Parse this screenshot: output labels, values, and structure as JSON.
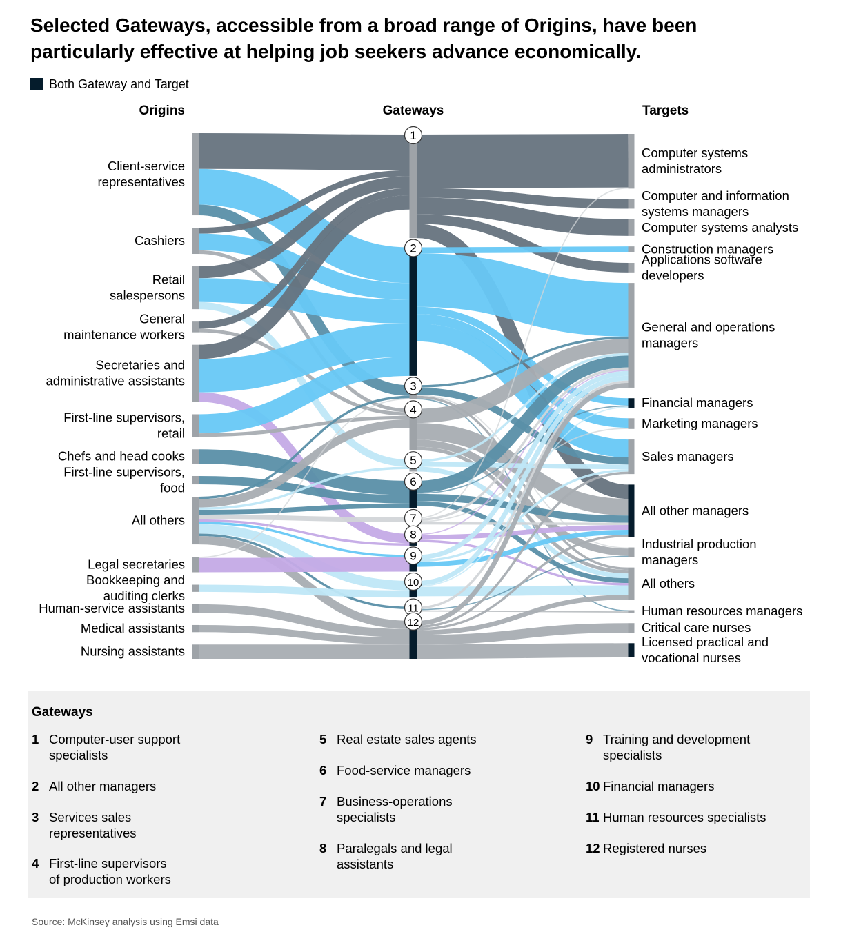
{
  "title": "Selected Gateways, accessible from a broad range of Origins, have been particularly effective at helping job seekers advance economically.",
  "legend": {
    "label": "Both Gateway and Target",
    "color": "#051c2c"
  },
  "columns": {
    "origins": "Origins",
    "gateways": "Gateways",
    "targets": "Targets"
  },
  "colors": {
    "dark_grey": "#66737e",
    "grey": "#a8adb2",
    "light_grey": "#d2d5d8",
    "blue": "#67c8f5",
    "pale_blue": "#bfe7f7",
    "steel_blue": "#5a8fa8",
    "purple": "#c4aae6",
    "node_grey": "#9ea3a8",
    "navy": "#051c2c"
  },
  "origins": [
    {
      "id": "o_csr",
      "label": [
        "Client-service",
        "representatives"
      ]
    },
    {
      "id": "o_cash",
      "label": [
        "Cashiers"
      ]
    },
    {
      "id": "o_retail",
      "label": [
        "Retail",
        "salespersons"
      ]
    },
    {
      "id": "o_maint",
      "label": [
        "General",
        "maintenance workers"
      ]
    },
    {
      "id": "o_sec",
      "label": [
        "Secretaries and",
        "administrative assistants"
      ]
    },
    {
      "id": "o_flsr",
      "label": [
        "First-line supervisors,",
        "retail"
      ]
    },
    {
      "id": "o_chef",
      "label": [
        "Chefs and head cooks"
      ]
    },
    {
      "id": "o_flsf",
      "label": [
        "First-line supervisors,",
        "food"
      ]
    },
    {
      "id": "o_all",
      "label": [
        "All others"
      ]
    },
    {
      "id": "o_legal",
      "label": [
        "Legal secretaries"
      ]
    },
    {
      "id": "o_book",
      "label": [
        "Bookkeeping and",
        "auditing clerks"
      ]
    },
    {
      "id": "o_hsa",
      "label": [
        "Human-service assistants"
      ]
    },
    {
      "id": "o_med",
      "label": [
        "Medical assistants"
      ]
    },
    {
      "id": "o_nurse",
      "label": [
        "Nursing assistants"
      ]
    }
  ],
  "gateways": [
    {
      "id": "g1",
      "num": "1",
      "both": false
    },
    {
      "id": "g2",
      "num": "2",
      "both": true
    },
    {
      "id": "g3",
      "num": "3",
      "both": false
    },
    {
      "id": "g4",
      "num": "4",
      "both": false
    },
    {
      "id": "g5",
      "num": "5",
      "both": false
    },
    {
      "id": "g6",
      "num": "6",
      "both": true
    },
    {
      "id": "g7",
      "num": "7",
      "both": true
    },
    {
      "id": "g8",
      "num": "8",
      "both": true
    },
    {
      "id": "g9",
      "num": "9",
      "both": true
    },
    {
      "id": "g10",
      "num": "10",
      "both": true
    },
    {
      "id": "g11",
      "num": "11",
      "both": true
    },
    {
      "id": "g12",
      "num": "12",
      "both": true
    }
  ],
  "targets": [
    {
      "id": "t_csa",
      "label": [
        "Computer systems",
        "administrators"
      ],
      "both": false
    },
    {
      "id": "t_cism",
      "label": [
        "Computer and information",
        "systems managers"
      ],
      "both": false
    },
    {
      "id": "t_csan",
      "label": [
        "Computer systems analysts"
      ],
      "both": false
    },
    {
      "id": "t_con",
      "label": [
        "Construction managers"
      ],
      "both": false
    },
    {
      "id": "t_asd",
      "label": [
        "Applications software",
        "developers"
      ],
      "both": false
    },
    {
      "id": "t_gom",
      "label": [
        "General and operations",
        "managers"
      ],
      "both": false
    },
    {
      "id": "t_fin",
      "label": [
        "Financial managers"
      ],
      "both": true
    },
    {
      "id": "t_mkt",
      "label": [
        "Marketing managers"
      ],
      "both": false
    },
    {
      "id": "t_sales",
      "label": [
        "Sales managers"
      ],
      "both": false
    },
    {
      "id": "t_aom",
      "label": [
        "All other managers"
      ],
      "both": true
    },
    {
      "id": "t_ipm",
      "label": [
        "Industrial production",
        "managers"
      ],
      "both": false
    },
    {
      "id": "t_all",
      "label": [
        "All others"
      ],
      "both": false
    },
    {
      "id": "t_hrm",
      "label": [
        "Human resources managers"
      ],
      "both": false
    },
    {
      "id": "t_ccn",
      "label": [
        "Critical care nurses"
      ],
      "both": false
    },
    {
      "id": "t_lpn",
      "label": [
        "Licensed practical and",
        "vocational nurses"
      ],
      "both": true
    }
  ],
  "flows": [
    {
      "from": "o_csr",
      "to": "g1",
      "value": 30,
      "color": "dark_grey"
    },
    {
      "from": "o_csr",
      "to": "g2",
      "value": 30,
      "color": "blue"
    },
    {
      "from": "o_csr",
      "to": "g3",
      "value": 9,
      "color": "steel_blue"
    },
    {
      "from": "o_cash",
      "to": "g1",
      "value": 5,
      "color": "dark_grey"
    },
    {
      "from": "o_cash",
      "to": "g2",
      "value": 14,
      "color": "blue"
    },
    {
      "from": "o_cash",
      "to": "g4",
      "value": 3,
      "color": "grey"
    },
    {
      "from": "o_retail",
      "to": "g1",
      "value": 10,
      "color": "dark_grey"
    },
    {
      "from": "o_retail",
      "to": "g2",
      "value": 20,
      "color": "blue"
    },
    {
      "from": "o_retail",
      "to": "g5",
      "value": 6,
      "color": "pale_blue"
    },
    {
      "from": "o_maint",
      "to": "g1",
      "value": 6,
      "color": "dark_grey"
    },
    {
      "from": "o_maint",
      "to": "g4",
      "value": 3,
      "color": "grey"
    },
    {
      "from": "o_sec",
      "to": "g1",
      "value": 12,
      "color": "dark_grey"
    },
    {
      "from": "o_sec",
      "to": "g2",
      "value": 28,
      "color": "blue"
    },
    {
      "from": "o_sec",
      "to": "g8",
      "value": 8,
      "color": "purple"
    },
    {
      "from": "o_flsr",
      "to": "g2",
      "value": 16,
      "color": "blue"
    },
    {
      "from": "o_flsr",
      "to": "g4",
      "value": 3,
      "color": "grey"
    },
    {
      "from": "o_chef",
      "to": "g6",
      "value": 12,
      "color": "steel_blue"
    },
    {
      "from": "o_flsf",
      "to": "g6",
      "value": 7,
      "color": "steel_blue"
    },
    {
      "from": "o_all",
      "to": "g3",
      "value": 2,
      "color": "steel_blue"
    },
    {
      "from": "o_all",
      "to": "g4",
      "value": 7,
      "color": "grey"
    },
    {
      "from": "o_all",
      "to": "g5",
      "value": 2,
      "color": "pale_blue"
    },
    {
      "from": "o_all",
      "to": "g6",
      "value": 4,
      "color": "steel_blue"
    },
    {
      "from": "o_all",
      "to": "g7",
      "value": 4,
      "color": "light_grey"
    },
    {
      "from": "o_all",
      "to": "g8",
      "value": 2,
      "color": "purple"
    },
    {
      "from": "o_all",
      "to": "g9",
      "value": 2,
      "color": "blue"
    },
    {
      "from": "o_all",
      "to": "g10",
      "value": 8,
      "color": "pale_blue"
    },
    {
      "from": "o_all",
      "to": "g11",
      "value": 2,
      "color": "steel_blue"
    },
    {
      "from": "o_all",
      "to": "g12",
      "value": 7,
      "color": "grey"
    },
    {
      "from": "o_legal",
      "to": "g9",
      "value": 12,
      "color": "purple"
    },
    {
      "from": "o_legal",
      "to": "g3",
      "value": 1,
      "color": "light_grey"
    },
    {
      "from": "o_book",
      "to": "g10",
      "value": 6,
      "color": "pale_blue"
    },
    {
      "from": "o_hsa",
      "to": "g12",
      "value": 7,
      "color": "grey"
    },
    {
      "from": "o_med",
      "to": "g12",
      "value": 6,
      "color": "grey"
    },
    {
      "from": "o_nurse",
      "to": "g12",
      "value": 12,
      "color": "grey"
    },
    {
      "from": "g1",
      "to": "t_csa",
      "value": 45,
      "color": "dark_grey"
    },
    {
      "from": "g1",
      "to": "t_cism",
      "value": 8,
      "color": "dark_grey"
    },
    {
      "from": "g1",
      "to": "t_csan",
      "value": 14,
      "color": "dark_grey"
    },
    {
      "from": "g1",
      "to": "t_asd",
      "value": 8,
      "color": "dark_grey"
    },
    {
      "from": "g1",
      "to": "t_aom",
      "value": 12,
      "color": "dark_grey"
    },
    {
      "from": "g2",
      "to": "t_con",
      "value": 5,
      "color": "blue"
    },
    {
      "from": "g2",
      "to": "t_gom",
      "value": 45,
      "color": "blue"
    },
    {
      "from": "g2",
      "to": "t_fin",
      "value": 6,
      "color": "blue"
    },
    {
      "from": "g2",
      "to": "t_mkt",
      "value": 8,
      "color": "blue"
    },
    {
      "from": "g2",
      "to": "t_sales",
      "value": 15,
      "color": "blue"
    },
    {
      "from": "g3",
      "to": "t_gom",
      "value": 2,
      "color": "steel_blue"
    },
    {
      "from": "g3",
      "to": "t_sales",
      "value": 6,
      "color": "steel_blue"
    },
    {
      "from": "g3",
      "to": "t_all",
      "value": 2,
      "color": "grey"
    },
    {
      "from": "g3",
      "to": "t_hrm",
      "value": 1,
      "color": "steel_blue"
    },
    {
      "from": "g3",
      "to": "t_ipm",
      "value": 1,
      "color": "light_grey"
    },
    {
      "from": "g4",
      "to": "t_gom",
      "value": 12,
      "color": "grey"
    },
    {
      "from": "g4",
      "to": "t_aom",
      "value": 14,
      "color": "grey"
    },
    {
      "from": "g4",
      "to": "t_ipm",
      "value": 6,
      "color": "grey"
    },
    {
      "from": "g4",
      "to": "t_all",
      "value": 3,
      "color": "grey"
    },
    {
      "from": "g5",
      "to": "t_gom",
      "value": 2,
      "color": "pale_blue"
    },
    {
      "from": "g5",
      "to": "t_sales",
      "value": 4,
      "color": "pale_blue"
    },
    {
      "from": "g5",
      "to": "t_all",
      "value": 4,
      "color": "pale_blue"
    },
    {
      "from": "g6",
      "to": "t_gom",
      "value": 10,
      "color": "steel_blue"
    },
    {
      "from": "g6",
      "to": "t_aom",
      "value": 6,
      "color": "steel_blue"
    },
    {
      "from": "g6",
      "to": "t_all",
      "value": 4,
      "color": "steel_blue"
    },
    {
      "from": "g6",
      "to": "t_fin",
      "value": 1,
      "color": "steel_blue"
    },
    {
      "from": "g7",
      "to": "t_gom",
      "value": 2,
      "color": "light_grey"
    },
    {
      "from": "g7",
      "to": "t_aom",
      "value": 2,
      "color": "light_grey"
    },
    {
      "from": "g7",
      "to": "t_csa",
      "value": 1,
      "color": "light_grey"
    },
    {
      "from": "g7",
      "to": "t_mkt",
      "value": 1,
      "color": "light_grey"
    },
    {
      "from": "g8",
      "to": "t_aom",
      "value": 4,
      "color": "purple"
    },
    {
      "from": "g8",
      "to": "t_all",
      "value": 2,
      "color": "purple"
    },
    {
      "from": "g8",
      "to": "t_gom",
      "value": 1,
      "color": "purple"
    },
    {
      "from": "g9",
      "to": "t_gom",
      "value": 4,
      "color": "pale_blue"
    },
    {
      "from": "g9",
      "to": "t_aom",
      "value": 4,
      "color": "blue"
    },
    {
      "from": "g9",
      "to": "t_sales",
      "value": 2,
      "color": "pale_blue"
    },
    {
      "from": "g10",
      "to": "t_fin",
      "value": 1,
      "color": "pale_blue"
    },
    {
      "from": "g10",
      "to": "t_all",
      "value": 8,
      "color": "pale_blue"
    },
    {
      "from": "g10",
      "to": "t_gom",
      "value": 4,
      "color": "pale_blue"
    },
    {
      "from": "g11",
      "to": "t_hrm",
      "value": 1,
      "color": "grey"
    },
    {
      "from": "g11",
      "to": "t_gom",
      "value": 2,
      "color": "light_grey"
    },
    {
      "from": "g11",
      "to": "t_ipm",
      "value": 1,
      "color": "steel_blue"
    },
    {
      "from": "g12",
      "to": "t_ccn",
      "value": 8,
      "color": "grey"
    },
    {
      "from": "g12",
      "to": "t_lpn",
      "value": 12,
      "color": "grey"
    },
    {
      "from": "g12",
      "to": "t_all",
      "value": 4,
      "color": "grey"
    },
    {
      "from": "g12",
      "to": "t_gom",
      "value": 4,
      "color": "grey"
    },
    {
      "from": "g12",
      "to": "t_sales",
      "value": 2,
      "color": "grey"
    },
    {
      "from": "g12",
      "to": "t_aom",
      "value": 2,
      "color": "grey"
    }
  ],
  "gateway_panel": {
    "title": "Gateways",
    "items": [
      {
        "num": "1",
        "label": [
          "Computer-user support",
          "specialists"
        ]
      },
      {
        "num": "2",
        "label": [
          "All other managers"
        ]
      },
      {
        "num": "3",
        "label": [
          "Services sales",
          "representatives"
        ]
      },
      {
        "num": "4",
        "label": [
          "First-line supervisors",
          "of production workers"
        ]
      },
      {
        "num": "5",
        "label": [
          "Real estate sales agents"
        ]
      },
      {
        "num": "6",
        "label": [
          "Food-service managers"
        ]
      },
      {
        "num": "7",
        "label": [
          "Business-operations",
          "specialists"
        ]
      },
      {
        "num": "8",
        "label": [
          "Paralegals and legal",
          "assistants"
        ]
      },
      {
        "num": "9",
        "label": [
          "Training and development",
          "specialists"
        ]
      },
      {
        "num": "10",
        "label": [
          "Financial managers"
        ]
      },
      {
        "num": "11",
        "label": [
          "Human resources specialists"
        ]
      },
      {
        "num": "12",
        "label": [
          "Registered nurses"
        ]
      }
    ]
  },
  "source": "Source: McKinsey analysis using Emsi data"
}
